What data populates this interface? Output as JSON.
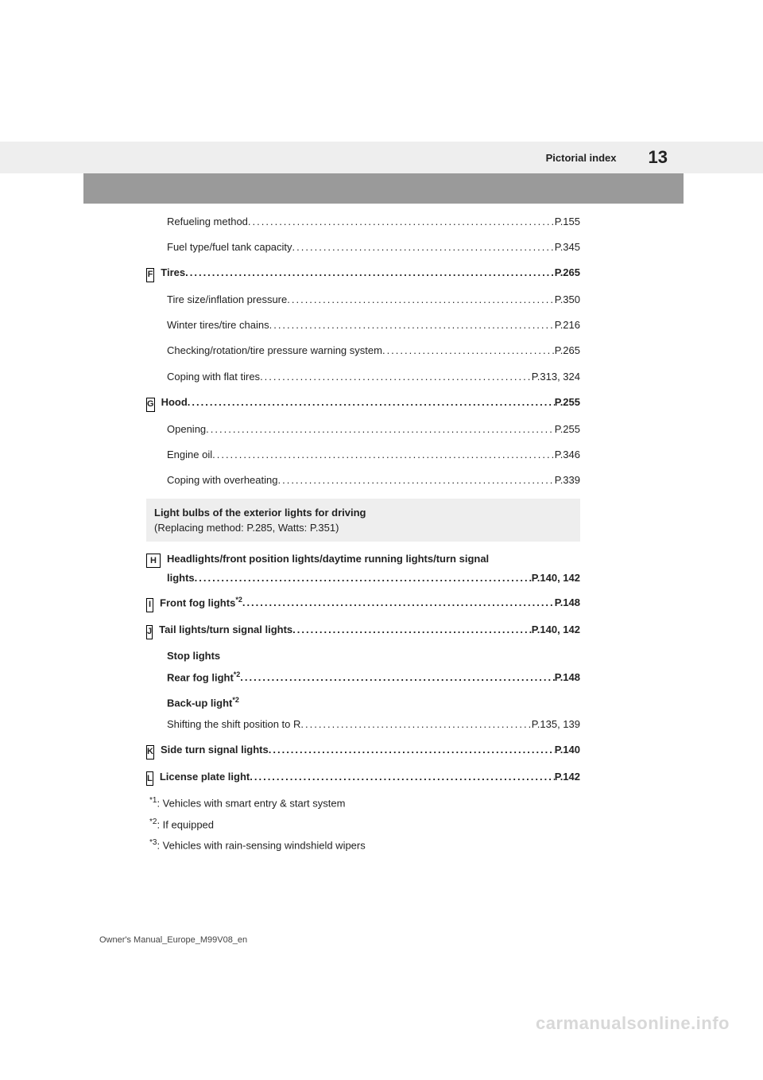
{
  "header": {
    "section": "Pictorial index",
    "page": "13"
  },
  "entries": [
    {
      "letter": null,
      "text": "Refueling method",
      "pages": "P.155",
      "bold": false,
      "sup": null
    },
    {
      "letter": null,
      "text": "Fuel type/fuel tank capacity",
      "pages": "P.345",
      "bold": false,
      "sup": null
    },
    {
      "letter": "F",
      "text": "Tires",
      "pages": "P.265",
      "bold": true,
      "sup": null
    },
    {
      "letter": null,
      "text": "Tire size/inflation pressure",
      "pages": "P.350",
      "bold": false,
      "sup": null
    },
    {
      "letter": null,
      "text": "Winter tires/tire chains",
      "pages": "P.216",
      "bold": false,
      "sup": null
    },
    {
      "letter": null,
      "text": "Checking/rotation/tire pressure warning system",
      "pages": "P.265",
      "bold": false,
      "sup": null
    },
    {
      "letter": null,
      "text": "Coping with flat tires",
      "pages": "P.313, 324",
      "bold": false,
      "sup": null
    },
    {
      "letter": "G",
      "text": "Hood",
      "pages": "P.255",
      "bold": true,
      "sup": null
    },
    {
      "letter": null,
      "text": "Opening",
      "pages": "P.255",
      "bold": false,
      "sup": null
    },
    {
      "letter": null,
      "text": "Engine oil",
      "pages": "P.346",
      "bold": false,
      "sup": null
    },
    {
      "letter": null,
      "text": "Coping with overheating",
      "pages": "P.339",
      "bold": false,
      "sup": null
    }
  ],
  "shaded": {
    "title": "Light bulbs of the exterior lights for driving",
    "sub": "(Replacing method: P.285, Watts: P.351)"
  },
  "entries2": [
    {
      "type": "multi",
      "letter": "H",
      "line1": "Headlights/front position lights/daytime running lights/turn signal",
      "line2_text": "lights",
      "line2_pages": "P.140, 142"
    },
    {
      "type": "single",
      "letter": "I",
      "text": "Front fog lights",
      "sup": "*2",
      "pages": "P.148",
      "bold": true
    },
    {
      "type": "single",
      "letter": "J",
      "text": "Tail lights/turn signal lights",
      "sup": null,
      "pages": "P.140, 142",
      "bold": true
    },
    {
      "type": "label",
      "text": "Stop lights"
    },
    {
      "type": "single",
      "letter": null,
      "text": "Rear fog light",
      "sup": "*2",
      "pages": "P.148",
      "bold": true
    },
    {
      "type": "label_sup",
      "text": "Back-up light",
      "sup": "*2"
    },
    {
      "type": "single",
      "letter": null,
      "text": "Shifting the shift position to R",
      "sup": null,
      "pages": "P.135, 139",
      "bold": false
    },
    {
      "type": "single",
      "letter": "K",
      "text": "Side turn signal lights",
      "sup": null,
      "pages": "P.140",
      "bold": true
    },
    {
      "type": "single",
      "letter": "L",
      "text": "License plate light",
      "sup": null,
      "pages": "P.142",
      "bold": true
    }
  ],
  "footnotes": [
    {
      "mark": "*1",
      "text": ": Vehicles with smart entry & start system"
    },
    {
      "mark": "*2",
      "text": ": If equipped"
    },
    {
      "mark": "*3",
      "text": ": Vehicles with rain-sensing windshield wipers"
    }
  ],
  "footer": "Owner's Manual_Europe_M99V08_en",
  "watermark": "carmanualsonline.info",
  "colors": {
    "header_bg": "#eeeeee",
    "band_bg": "#9a9a9a",
    "text": "#222222",
    "watermark": "#d8d8d8"
  }
}
